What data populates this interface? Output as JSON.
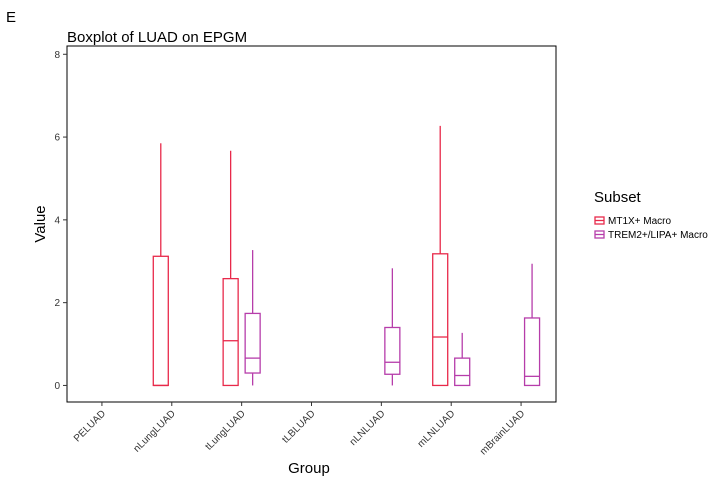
{
  "panel_label": "E",
  "colors": {
    "MT1X+ Macro": "#E8294A",
    "TREM2+/LIPA+ Macro": "#B63DAA"
  },
  "chart_data": {
    "type": "boxplot",
    "title": "Boxplot of LUAD on EPGM",
    "xlabel": "Group",
    "ylabel": "Value",
    "ylim": [
      -0.4,
      8.2
    ],
    "yticks": [
      0,
      2,
      4,
      6,
      8
    ],
    "grid": false,
    "legend": {
      "title": "Subset",
      "position": "right"
    },
    "categories": [
      "PELUAD",
      "nLungLUAD",
      "tLungLUAD",
      "tLBLUAD",
      "nLNLUAD",
      "mLNLUAD",
      "mBrainLUAD"
    ],
    "series": [
      {
        "name": "MT1X+ Macro",
        "boxes": [
          null,
          {
            "min": 0,
            "q1": 0,
            "median": 0,
            "q3": 3.12,
            "max": 5.85
          },
          {
            "min": 0,
            "q1": 0,
            "median": 1.08,
            "q3": 2.58,
            "max": 5.67
          },
          null,
          null,
          {
            "min": 0,
            "q1": 0,
            "median": 1.17,
            "q3": 3.18,
            "max": 6.27
          },
          null
        ]
      },
      {
        "name": "TREM2+/LIPA+ Macro",
        "boxes": [
          null,
          null,
          {
            "min": 0,
            "q1": 0.3,
            "median": 0.66,
            "q3": 1.74,
            "max": 3.27
          },
          null,
          {
            "min": 0,
            "q1": 0.27,
            "median": 0.56,
            "q3": 1.4,
            "max": 2.83
          },
          {
            "min": 0,
            "q1": 0,
            "median": 0.24,
            "q3": 0.66,
            "max": 1.27
          },
          {
            "min": 0,
            "q1": 0,
            "median": 0.22,
            "q3": 1.63,
            "max": 2.94
          }
        ]
      }
    ]
  }
}
